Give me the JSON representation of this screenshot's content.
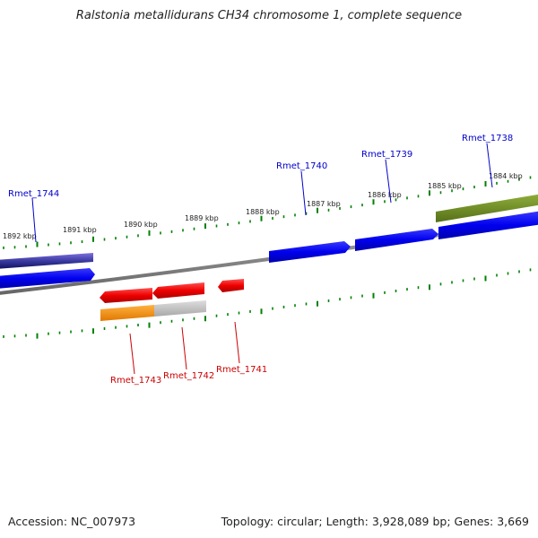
{
  "title": "Ralstonia metallidurans CH34 chromosome 1, complete sequence",
  "footer": {
    "accession": "Accession: NC_007973",
    "summary": "Topology: circular; Length: 3,928,089 bp; Genes: 3,669"
  },
  "ruler": {
    "unit_labels": [
      "1892 kbp",
      "1891 kbp",
      "1890 kbp",
      "1889 kbp",
      "1888 kbp",
      "1887 kbp",
      "1886 kbp",
      "1885 kbp",
      "1884 kbp"
    ]
  },
  "genes": {
    "forward": [
      {
        "id": "Rmet_1744",
        "label": "Rmet_1744",
        "color": "#0000cc"
      },
      {
        "id": "Rmet_1740",
        "label": "Rmet_1740",
        "color": "#0000cc"
      },
      {
        "id": "Rmet_1739",
        "label": "Rmet_1739",
        "color": "#0000cc"
      },
      {
        "id": "Rmet_1738",
        "label": "Rmet_1738",
        "color": "#0000cc"
      }
    ],
    "reverse": [
      {
        "id": "Rmet_1743",
        "label": "Rmet_1743",
        "color": "#cc0000"
      },
      {
        "id": "Rmet_1742",
        "label": "Rmet_1742",
        "color": "#cc0000"
      },
      {
        "id": "Rmet_1741",
        "label": "Rmet_1741",
        "color": "#cc0000"
      }
    ]
  },
  "colors": {
    "forward_cds": "#0000ff",
    "reverse_cds": "#ff0000",
    "backbone": "#777777",
    "ruler_ticks": "#008000",
    "cog_orange": "#ff8c00",
    "cog_grey": "#bbbbbb",
    "cog_olive": "#6b8e23",
    "cog_navy": "#1a1a80",
    "cog_slate": "#6a5acd"
  }
}
